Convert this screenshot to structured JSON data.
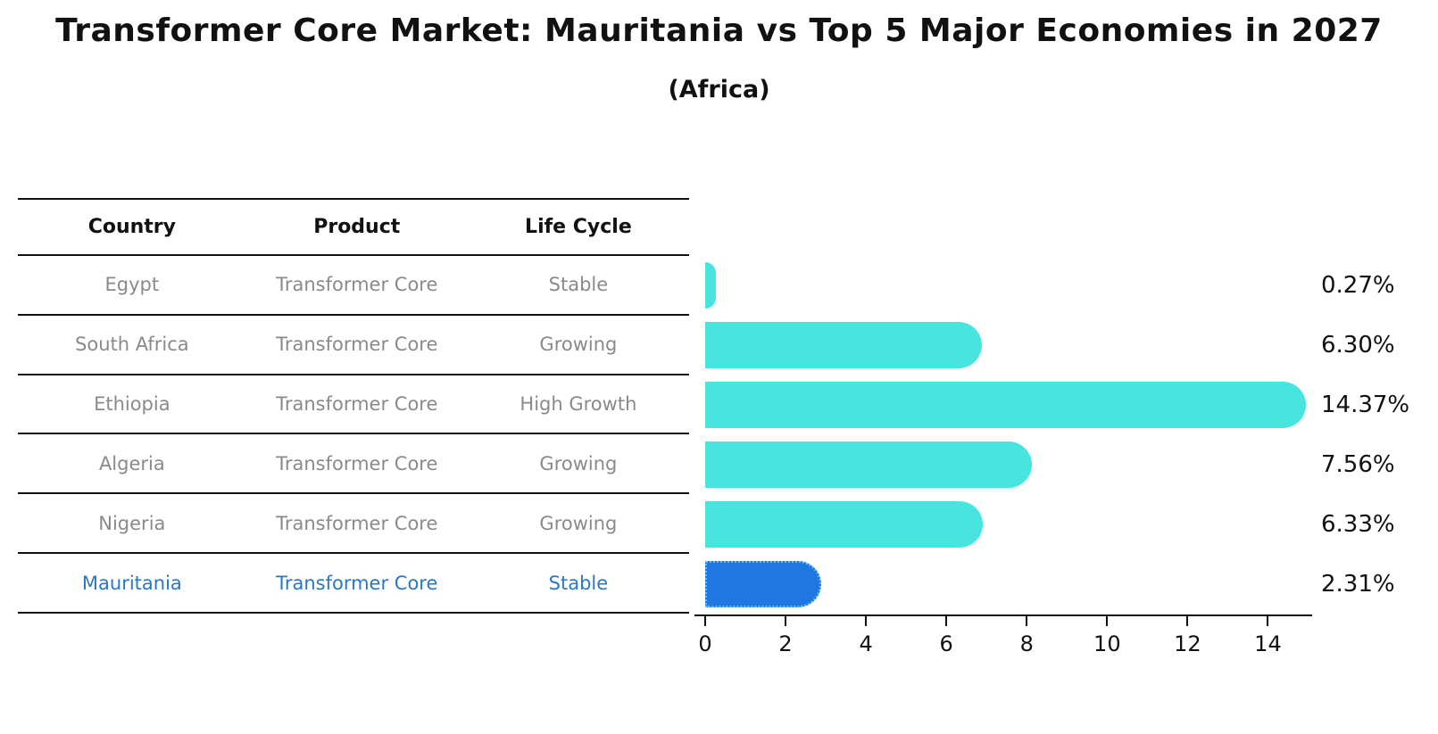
{
  "title": "Transformer Core Market: Mauritania vs Top 5 Major Economies in 2027",
  "subtitle": "(Africa)",
  "table": {
    "columns": [
      "Country",
      "Product",
      "Life Cycle"
    ],
    "rows": [
      {
        "country": "Egypt",
        "product": "Transformer Core",
        "life_cycle": "Stable",
        "highlight": false
      },
      {
        "country": "South Africa",
        "product": "Transformer Core",
        "life_cycle": "Growing",
        "highlight": false
      },
      {
        "country": "Ethiopia",
        "product": "Transformer Core",
        "life_cycle": "High Growth",
        "highlight": false
      },
      {
        "country": "Algeria",
        "product": "Transformer Core",
        "life_cycle": "Growing",
        "highlight": false
      },
      {
        "country": "Nigeria",
        "product": "Transformer Core",
        "life_cycle": "Growing",
        "highlight": false
      },
      {
        "country": "Mauritania",
        "product": "Transformer Core",
        "life_cycle": "Stable",
        "highlight": true
      }
    ]
  },
  "chart_data": {
    "type": "bar",
    "orientation": "horizontal",
    "title": "Transformer Core Market: Mauritania vs Top 5 Major Economies in 2027",
    "subtitle": "(Africa)",
    "categories": [
      "Egypt",
      "South Africa",
      "Ethiopia",
      "Algeria",
      "Nigeria",
      "Mauritania"
    ],
    "values": [
      0.27,
      6.3,
      14.37,
      7.56,
      6.33,
      2.31
    ],
    "value_labels": [
      "0.27%",
      "6.30%",
      "14.37%",
      "7.56%",
      "6.33%",
      "2.31%"
    ],
    "highlight_index": 5,
    "xlim": [
      0,
      15.1
    ],
    "xticks": [
      0,
      2,
      4,
      6,
      8,
      10,
      12,
      14
    ],
    "grid": false,
    "legend": "none",
    "value_label_position": "right-outside"
  },
  "colors": {
    "bar": "#47E5DE",
    "highlight_bar": "#2077E2",
    "highlight_bar_border": "#6CBCF2",
    "row_text": "#8a8a8a",
    "highlight_text": "#2878C8",
    "axis": "#111111"
  }
}
